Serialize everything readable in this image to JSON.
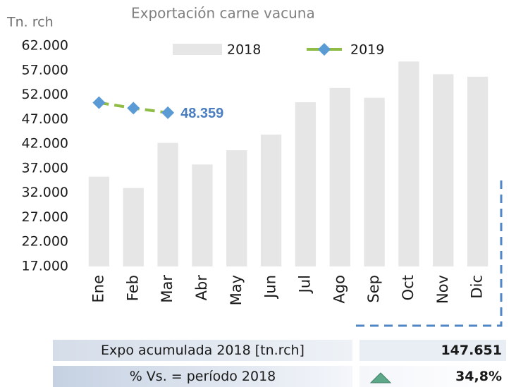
{
  "chart_data": {
    "type": "bar",
    "title": "Exportación carne vacuna",
    "y_label": "Tn. rch",
    "categories": [
      "Ene",
      "Feb",
      "Mar",
      "Abr",
      "May",
      "Jun",
      "Jul",
      "Ago",
      "Sep",
      "Oct",
      "Nov",
      "Dic"
    ],
    "series": [
      {
        "name": "2018",
        "type": "bar",
        "color": "#e6e6e6",
        "values": [
          35300,
          33000,
          42200,
          37800,
          40700,
          43900,
          50500,
          53400,
          51400,
          58800,
          56200,
          55700
        ]
      },
      {
        "name": "2019",
        "type": "line",
        "color": "#8fbc45",
        "marker_color": "#5b9bd5",
        "values": [
          50400,
          49300,
          48359,
          null,
          null,
          null,
          null,
          null,
          null,
          null,
          null,
          null
        ],
        "value_labels": [
          null,
          null,
          "48.359",
          null,
          null,
          null,
          null,
          null,
          null,
          null,
          null,
          null
        ]
      }
    ],
    "ylim": [
      17000,
      62000
    ],
    "yticks": [
      {
        "value": 17000,
        "label": "17.000"
      },
      {
        "value": 22000,
        "label": "22.000"
      },
      {
        "value": 27000,
        "label": "27.000"
      },
      {
        "value": 32000,
        "label": "32.000"
      },
      {
        "value": 37000,
        "label": "37.000"
      },
      {
        "value": 42000,
        "label": "42.000"
      },
      {
        "value": 47000,
        "label": "47.000"
      },
      {
        "value": 52000,
        "label": "52.000"
      },
      {
        "value": 57000,
        "label": "57.000"
      },
      {
        "value": 62000,
        "label": "62.000"
      }
    ],
    "grid": false,
    "legend": "top"
  },
  "summary": {
    "rows": [
      [
        "Expo acumulada 2018 [tn.rch]",
        "147.651"
      ],
      [
        "% Vs. = período 2018",
        "34,8%"
      ]
    ]
  }
}
